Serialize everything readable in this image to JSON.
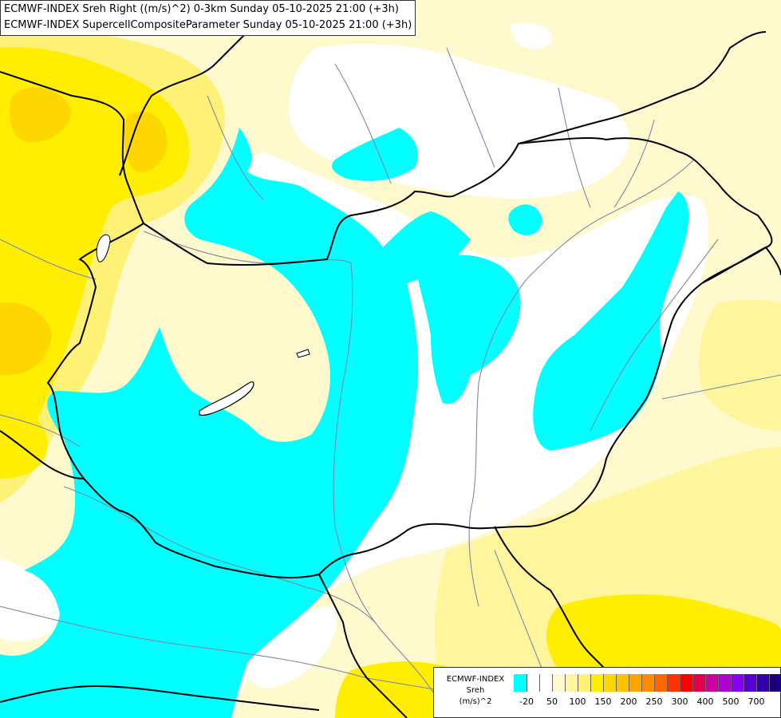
{
  "header": {
    "line1": "ECMWF-INDEX Sreh Right ((m/s)^2) 0-3km Sunday 05-10-2025 21:00 (+3h)",
    "line2": "ECMWF-INDEX SupercellCompositeParameter Sunday 05-10-2025 21:00 (+3h)"
  },
  "legend": {
    "line1": "ECMWF-INDEX",
    "line2": "Sreh",
    "line3": "(m/s)^2",
    "ticks": [
      "-20",
      "50",
      "100",
      "150",
      "200",
      "250",
      "300",
      "400",
      "500",
      "700"
    ],
    "colors": [
      "#00ffff",
      "#ffffff",
      "#ffffff",
      "#fffacd",
      "#fff59d",
      "#fff176",
      "#ffee00",
      "#ffd700",
      "#ffc000",
      "#ffa500",
      "#ff8c00",
      "#ff6600",
      "#ff3300",
      "#ff0000",
      "#e00050",
      "#cc00a0",
      "#b000d0",
      "#8800ee",
      "#5500cc",
      "#3300aa",
      "#1a0080"
    ]
  },
  "map": {
    "colors": {
      "cyan": "#00ffff",
      "white": "#ffffff",
      "pale": "#fffacd",
      "light": "#fff59d",
      "yellow": "#ffee00",
      "gold": "#ffd700",
      "orange": "#ffa500",
      "border": "#000000",
      "river": "#7a8aa8"
    }
  }
}
